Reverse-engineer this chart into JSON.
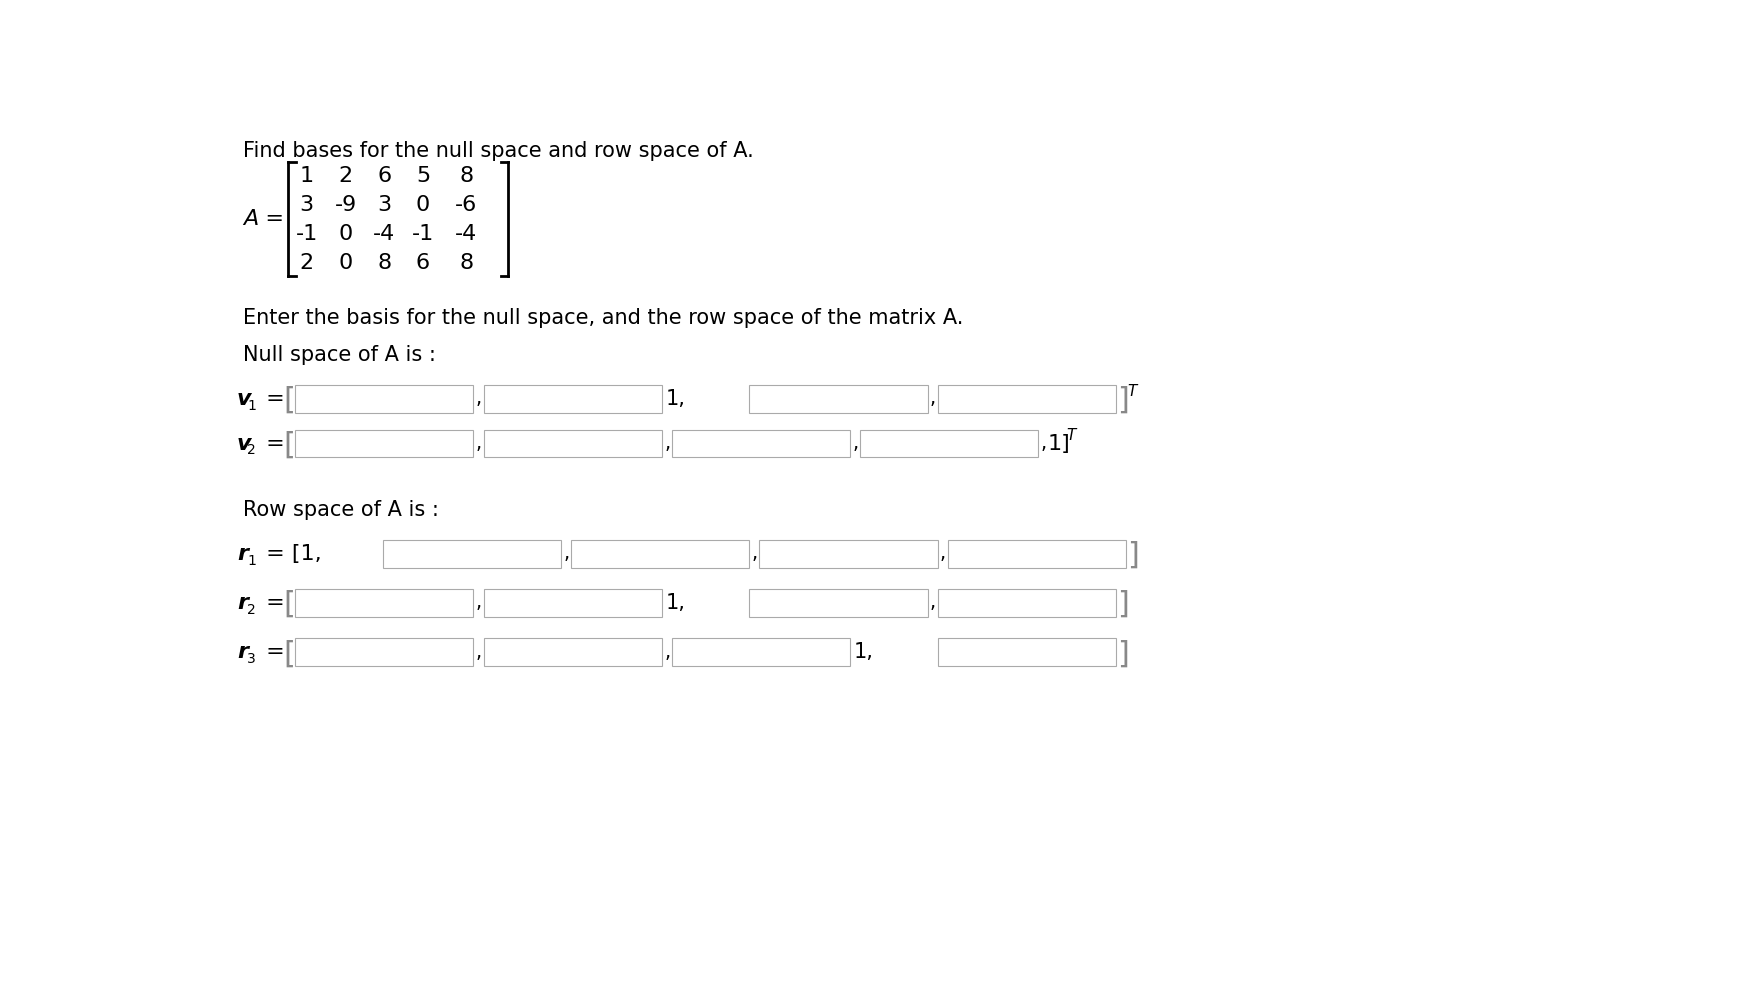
{
  "title": "Find bases for the null space and row space of A.",
  "matrix": [
    [
      1,
      2,
      6,
      5,
      8
    ],
    [
      3,
      -9,
      3,
      0,
      -6
    ],
    [
      -1,
      0,
      -4,
      -1,
      -4
    ],
    [
      2,
      0,
      8,
      6,
      8
    ]
  ],
  "instruction": "Enter the basis for the null space, and the row space of the matrix A.",
  "null_space_label": "Null space of A is :",
  "row_space_label": "Row space of A is :",
  "background_color": "#ffffff",
  "text_color": "#000000",
  "box_edge_color": "#aaaaaa",
  "box_fill": "#ffffff"
}
